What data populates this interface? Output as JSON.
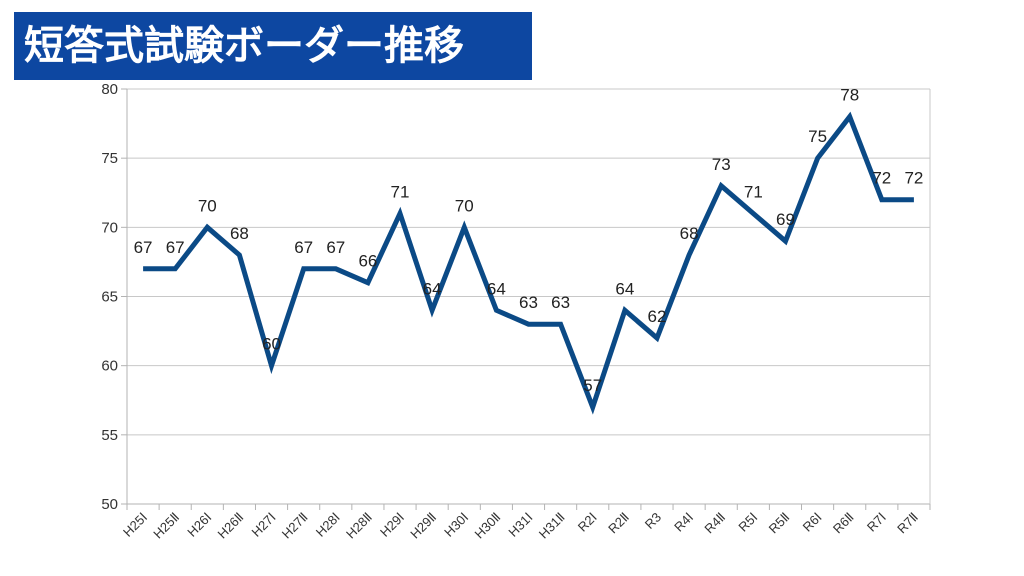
{
  "chart_data": {
    "type": "line",
    "title": "短答式試験ボーダー推移",
    "xlabel": "",
    "ylabel": "",
    "ylim": [
      50,
      80
    ],
    "ytick_step": 5,
    "grid": true,
    "legend": "none",
    "line_color": "#0b4a86",
    "categories": [
      "H25Ⅰ",
      "H25Ⅱ",
      "H26Ⅰ",
      "H26Ⅱ",
      "H27Ⅰ",
      "H27Ⅱ",
      "H28Ⅰ",
      "H28Ⅱ",
      "H29Ⅰ",
      "H29Ⅱ",
      "H30Ⅰ",
      "H30Ⅱ",
      "H31Ⅰ",
      "H31Ⅱ",
      "R2Ⅰ",
      "R2Ⅱ",
      "R3",
      "R4Ⅰ",
      "R4Ⅱ",
      "R5Ⅰ",
      "R5Ⅱ",
      "R6Ⅰ",
      "R6Ⅱ",
      "R7Ⅰ",
      "R7Ⅱ"
    ],
    "series": [
      {
        "values": [
          67,
          67,
          70,
          68,
          60,
          67,
          67,
          66,
          71,
          64,
          70,
          64,
          63,
          63,
          57,
          64,
          62,
          68,
          73,
          71,
          69,
          75,
          78,
          72,
          72
        ]
      }
    ]
  }
}
